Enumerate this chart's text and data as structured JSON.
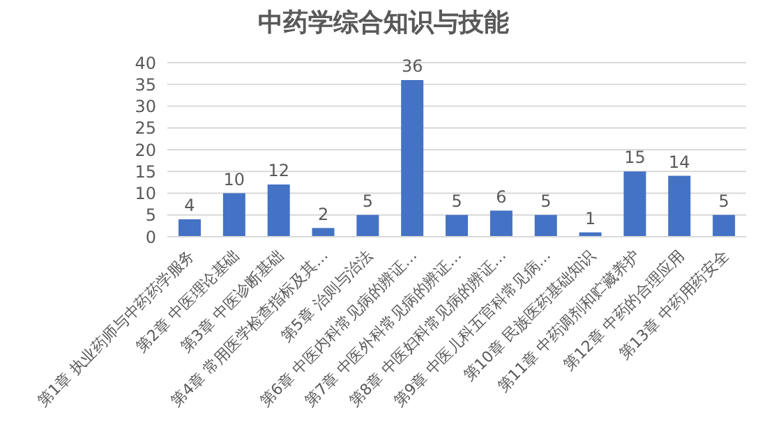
{
  "chart_data": {
    "type": "bar",
    "title": "中药学综合知识与技能",
    "categories": [
      "第1章 执业药师与中药药学服务",
      "第2章 中医理论基础",
      "第3章 中医诊断基础",
      "第4章 常用医学检查指标及其…",
      "第5章 治则与治法",
      "第6章 中医内科常见病的辨证…",
      "第7章 中医外科常见病的辨证…",
      "第8章 中医妇科常见病的辨证…",
      "第9章 中医儿科五官科常见病…",
      "第10章 民族医药基础知识",
      "第11章 中药调剂和贮藏养护",
      "第12章 中药的合理应用",
      "第13章 中药用药安全"
    ],
    "values": [
      4,
      10,
      12,
      2,
      5,
      36,
      5,
      6,
      5,
      1,
      15,
      14,
      5
    ],
    "color": "#4472c4",
    "ylim": [
      0,
      40
    ],
    "yticks": [
      0,
      5,
      10,
      15,
      20,
      25,
      30,
      35,
      40
    ],
    "grid": "y",
    "data_labels": true
  }
}
